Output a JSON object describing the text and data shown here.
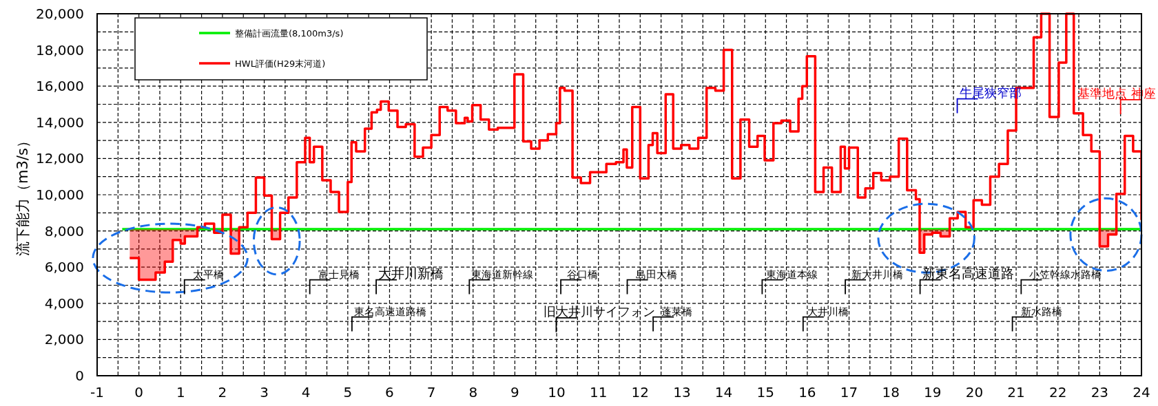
{
  "chart_data": {
    "type": "step",
    "ylabel": "流下能力（m3/s）",
    "xlim": [
      -1,
      24
    ],
    "xticks": [
      -1,
      {
        "value": -0.5,
        "label": null
      },
      0,
      {
        "value": 0.5,
        "label": null
      },
      1,
      {
        "value": 1.5,
        "label": null
      },
      2,
      {
        "value": 2.5,
        "label": null
      },
      3,
      {
        "value": 3.5,
        "label": null
      },
      4,
      {
        "value": 4.5,
        "label": null
      },
      5,
      {
        "value": 5.5,
        "label": null
      },
      6,
      {
        "value": 6.5,
        "label": null
      },
      7,
      {
        "value": 7.5,
        "label": null
      },
      8,
      {
        "value": 8.5,
        "label": null
      },
      9,
      {
        "value": 9.5,
        "label": null
      },
      10,
      {
        "value": 10.5,
        "label": null
      },
      11,
      {
        "value": 11.5,
        "label": null
      },
      12,
      {
        "value": 12.5,
        "label": null
      },
      13,
      {
        "value": 13.5,
        "label": null
      },
      14,
      {
        "value": 14.5,
        "label": null
      },
      15,
      {
        "value": 15.5,
        "label": null
      },
      16,
      {
        "value": 16.5,
        "label": null
      },
      17,
      {
        "value": 17.5,
        "label": null
      },
      18,
      {
        "value": 18.5,
        "label": null
      },
      19,
      {
        "value": 19.5,
        "label": null
      },
      20,
      {
        "value": 20.5,
        "label": null
      },
      21,
      {
        "value": 21.5,
        "label": null
      },
      22,
      {
        "value": 22.5,
        "label": null
      },
      23,
      {
        "value": 23.5,
        "label": null
      },
      24
    ],
    "ylim": [
      0,
      20000
    ],
    "yticks": [
      0,
      {
        "value": 1000,
        "label": null
      },
      {
        "value": 2000,
        "label": "2,000"
      },
      {
        "value": 3000,
        "label": null
      },
      {
        "value": 4000,
        "label": "4,000"
      },
      {
        "value": 5000,
        "label": null
      },
      {
        "value": 6000,
        "label": "6,000"
      },
      {
        "value": 7000,
        "label": null
      },
      {
        "value": 8000,
        "label": "8,000"
      },
      {
        "value": 9000,
        "label": null
      },
      {
        "value": 10000,
        "label": "10,000"
      },
      {
        "value": 11000,
        "label": null
      },
      {
        "value": 12000,
        "label": "12,000"
      },
      {
        "value": 13000,
        "label": null
      },
      {
        "value": 14000,
        "label": "14,000"
      },
      {
        "value": 15000,
        "label": null
      },
      {
        "value": 16000,
        "label": "16,000"
      },
      {
        "value": 17000,
        "label": null
      },
      {
        "value": 18000,
        "label": "18,000"
      },
      {
        "value": 19000,
        "label": null
      },
      {
        "value": 20000,
        "label": "20,000"
      }
    ],
    "grid": true,
    "legend": "top left",
    "series": [
      {
        "name": "整備計画流量(8,100m3/s)",
        "type": "line",
        "color": "#00ee00",
        "x": [
          -0.4,
          24
        ],
        "values": [
          8100,
          8100
        ]
      },
      {
        "name": "HWL評価(H29末河道)",
        "color": "#ff0000",
        "lower": [
          6500,
          5300,
          5700,
          6300,
          7500,
          7300,
          7700,
          8100,
          null,
          7900,
          8100,
          6750,
          8100,
          null,
          null,
          null,
          7550,
          8100,
          null,
          null,
          null,
          null,
          null,
          null,
          null,
          null,
          null,
          null,
          null,
          null,
          null,
          null,
          null,
          null,
          null,
          null,
          null,
          null,
          null,
          null,
          null,
          null,
          null,
          null,
          null,
          null,
          null,
          null,
          null,
          null,
          null,
          null,
          null,
          null,
          null,
          null,
          null,
          null,
          null,
          null,
          null,
          null,
          null,
          null,
          null,
          null,
          null,
          null,
          null,
          null,
          null,
          null,
          null,
          null,
          null,
          null,
          null,
          null,
          null,
          null,
          null,
          null,
          null,
          null,
          null,
          null,
          null,
          null,
          null,
          null,
          null,
          null,
          null,
          null,
          null,
          null,
          null,
          null,
          null,
          null,
          null,
          6800,
          7800,
          7900,
          7700,
          8100,
          null,
          null,
          null,
          null,
          null,
          null,
          null,
          null,
          null,
          null,
          null,
          null,
          null,
          null,
          null,
          null,
          7150,
          7800,
          8100,
          null,
          null,
          null
        ],
        "upper": [
          8100,
          8100,
          8100,
          8100,
          8100,
          8100,
          8100,
          8100,
          null,
          8100,
          8100,
          8100,
          8100,
          null,
          null,
          null,
          8100,
          8100,
          null,
          null,
          null,
          null,
          null,
          null,
          null,
          null,
          null,
          null,
          null,
          null,
          null,
          null,
          null,
          null,
          null,
          null,
          null,
          null,
          null,
          null,
          null,
          null,
          null,
          null,
          null,
          null,
          null,
          null,
          null,
          null,
          null,
          null,
          null,
          null,
          null,
          null,
          null,
          null,
          null,
          null,
          null,
          null,
          null,
          null,
          null,
          null,
          null,
          null,
          null,
          null,
          null,
          null,
          null,
          null,
          null,
          null,
          null,
          null,
          null,
          null,
          null,
          null,
          null,
          null,
          null,
          null,
          null,
          null,
          null,
          null,
          null,
          null,
          null,
          null,
          null,
          null,
          null,
          null,
          null,
          null,
          null,
          8100,
          8100,
          8100,
          8100,
          8100,
          null,
          null,
          null,
          null,
          null,
          null,
          null,
          null,
          null,
          null,
          null,
          null,
          null,
          null,
          null,
          null,
          8100,
          8100,
          8100,
          null,
          null,
          null
        ],
        "x": [
          -0.22,
          0.0,
          0.4,
          0.62,
          0.81,
          1.0,
          1.1,
          1.4,
          1.58,
          1.8,
          2.0,
          2.2,
          2.4,
          2.6,
          2.8,
          3.0,
          3.18,
          3.38,
          3.58,
          3.78,
          3.98,
          4.09,
          4.19,
          4.39,
          4.59,
          4.79,
          5.0,
          5.09,
          5.2,
          5.41,
          5.57,
          5.7,
          5.79,
          5.98,
          6.19,
          6.39,
          6.6,
          6.8,
          7.0,
          7.2,
          7.39,
          7.59,
          7.8,
          7.87,
          7.98,
          8.18,
          8.38,
          8.59,
          8.99,
          9.2,
          9.39,
          9.59,
          9.79,
          9.99,
          10.08,
          10.19,
          10.38,
          10.58,
          10.8,
          11.19,
          11.42,
          11.6,
          11.68,
          11.81,
          12.0,
          12.2,
          12.3,
          12.41,
          12.61,
          12.79,
          12.98,
          13.18,
          13.39,
          13.59,
          13.8,
          14.0,
          14.2,
          14.4,
          14.61,
          14.81,
          14.98,
          15.19,
          15.38,
          15.59,
          15.79,
          15.88,
          15.99,
          16.19,
          16.39,
          16.59,
          16.8,
          16.9,
          17.0,
          17.21,
          17.39,
          17.58,
          17.77,
          17.98,
          18.19,
          18.39,
          18.6,
          18.69,
          18.8,
          18.99,
          19.19,
          19.41,
          19.6,
          19.79,
          19.98,
          20.18,
          20.38,
          20.59,
          20.8,
          21.0,
          21.42,
          21.6,
          21.8,
          22.02,
          22.2,
          22.38,
          22.6,
          22.8,
          23.0,
          23.2,
          23.4,
          23.6,
          23.8,
          24.0
        ],
        "values": [
          6500,
          5300,
          5700,
          6300,
          7500,
          7300,
          7700,
          8200,
          8400,
          7900,
          8900,
          6750,
          8200,
          9000,
          10950,
          9950,
          7550,
          9000,
          9850,
          11800,
          13150,
          11800,
          12650,
          10800,
          10150,
          9050,
          10700,
          12900,
          12400,
          13650,
          14550,
          14700,
          15150,
          14650,
          13750,
          13900,
          12100,
          12600,
          13300,
          14850,
          14650,
          13950,
          14250,
          14050,
          14950,
          14150,
          13600,
          13700,
          16650,
          12950,
          12550,
          13000,
          13350,
          13950,
          15900,
          15750,
          10950,
          10650,
          11250,
          11700,
          11800,
          12500,
          11500,
          14850,
          10900,
          12750,
          13400,
          12300,
          15550,
          12550,
          12750,
          12550,
          13150,
          15900,
          15750,
          18000,
          10900,
          14150,
          12650,
          13250,
          11900,
          13950,
          14100,
          13500,
          15300,
          16000,
          17650,
          10150,
          11500,
          10150,
          12650,
          11450,
          12600,
          9850,
          10350,
          11200,
          10800,
          11000,
          13100,
          10250,
          9750,
          6800,
          7800,
          7900,
          7700,
          8700,
          9050,
          8200,
          9700,
          9450,
          11000,
          11700,
          13550,
          15900,
          18700,
          20000,
          14300,
          17300,
          20000,
          14500,
          13300,
          12400,
          7150,
          7800,
          10050,
          13250,
          12400,
          8600
        ]
      }
    ],
    "annotations": [
      "太平橋",
      "富士見橋",
      "大井川新橋",
      "東名高速道路橋",
      "東海道新幹線",
      "谷口橋",
      "旧大井川サイフォン",
      "島田大橋",
      "蓬莱橋",
      "東海道本線",
      "大井川橋",
      "新大井川橋",
      "新東名高速道路",
      "小笠幹線水路橋",
      "新水路橋",
      "牛尾狭窄部",
      "基準地点 神座"
    ]
  }
}
